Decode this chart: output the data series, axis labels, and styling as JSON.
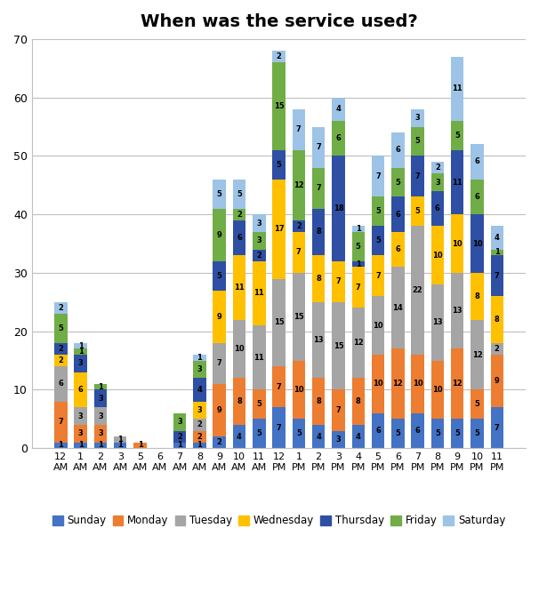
{
  "title": "When was the service used?",
  "hour_labels": [
    "12",
    "1",
    "2",
    "3",
    "5",
    "6",
    "7",
    "8",
    "9",
    "10",
    "11",
    "12",
    "1",
    "2",
    "3",
    "4",
    "5",
    "6",
    "7",
    "8",
    "9",
    "10",
    "11"
  ],
  "hour_ampm": [
    "AM",
    "AM",
    "AM",
    "AM",
    "AM",
    "AM",
    "AM",
    "AM",
    "AM",
    "AM",
    "AM",
    "PM",
    "PM",
    "PM",
    "PM",
    "PM",
    "PM",
    "PM",
    "PM",
    "PM",
    "PM",
    "PM",
    "PM"
  ],
  "days_order": [
    "Sunday",
    "Monday",
    "Tuesday",
    "Wednesday",
    "Thursday",
    "Friday",
    "Saturday"
  ],
  "day_colors": {
    "Sunday": "#4472C4",
    "Monday": "#ED7D31",
    "Tuesday": "#A5A5A5",
    "Wednesday": "#FFC000",
    "Thursday": "#2E4FA3",
    "Friday": "#70AD47",
    "Saturday": "#9DC3E6"
  },
  "data": {
    "Sunday": [
      1,
      1,
      1,
      1,
      0,
      0,
      1,
      1,
      2,
      4,
      5,
      7,
      5,
      4,
      3,
      4,
      6,
      5,
      6,
      5,
      5,
      5,
      7
    ],
    "Monday": [
      7,
      3,
      3,
      0,
      1,
      0,
      0,
      2,
      9,
      8,
      5,
      7,
      10,
      8,
      7,
      8,
      10,
      12,
      10,
      10,
      12,
      5,
      9
    ],
    "Tuesday": [
      6,
      3,
      3,
      1,
      0,
      0,
      0,
      2,
      7,
      10,
      11,
      15,
      15,
      13,
      15,
      12,
      10,
      14,
      22,
      13,
      13,
      12,
      2
    ],
    "Wednesday": [
      2,
      6,
      0,
      0,
      0,
      0,
      0,
      3,
      9,
      11,
      11,
      17,
      7,
      8,
      7,
      7,
      7,
      6,
      5,
      10,
      10,
      8,
      8
    ],
    "Thursday": [
      2,
      3,
      3,
      0,
      0,
      0,
      2,
      4,
      5,
      6,
      2,
      5,
      2,
      8,
      18,
      1,
      5,
      6,
      7,
      6,
      11,
      10,
      7
    ],
    "Friday": [
      5,
      1,
      1,
      0,
      0,
      0,
      3,
      3,
      9,
      2,
      3,
      15,
      12,
      7,
      6,
      5,
      5,
      5,
      5,
      3,
      5,
      6,
      1
    ],
    "Saturday": [
      2,
      1,
      0,
      0,
      0,
      0,
      0,
      1,
      5,
      5,
      3,
      2,
      7,
      7,
      4,
      1,
      7,
      6,
      3,
      2,
      11,
      6,
      4
    ]
  },
  "ylim": [
    0,
    70
  ],
  "yticks": [
    0,
    10,
    20,
    30,
    40,
    50,
    60,
    70
  ],
  "figsize": [
    6.24,
    6.66
  ],
  "dpi": 100
}
